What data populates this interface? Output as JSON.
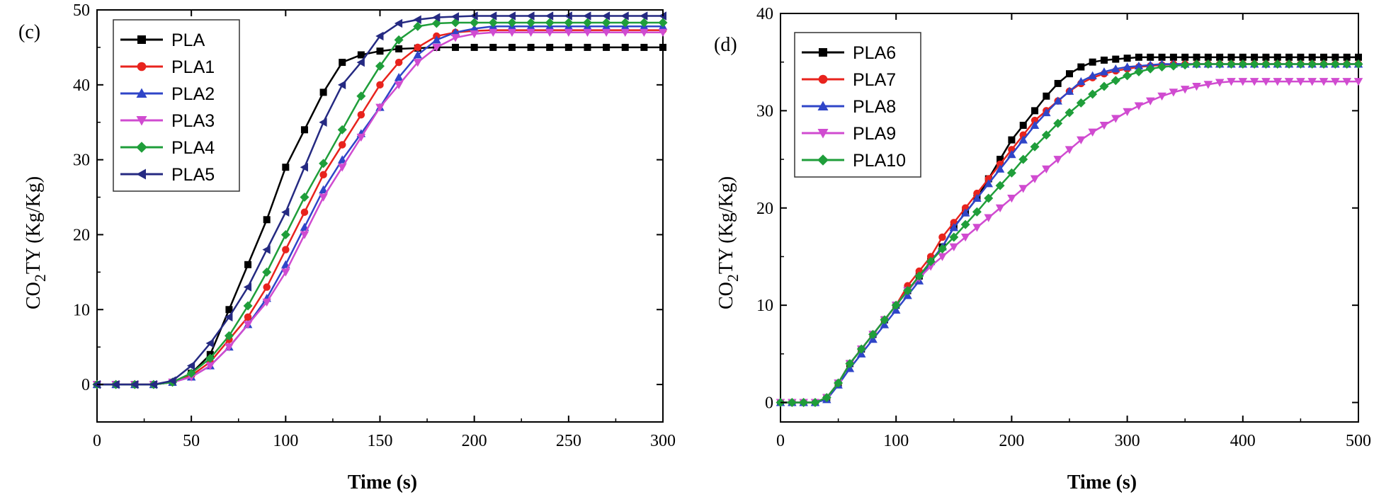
{
  "chart_data": [
    {
      "panel_label": "(c)",
      "type": "line",
      "xlabel": "Time (s)",
      "ylabel_main": "CO",
      "ylabel_sub": "2",
      "ylabel_rest": "TY (Kg/Kg)",
      "xlim": [
        0,
        300
      ],
      "ylim": [
        -5,
        50
      ],
      "xticks": [
        0,
        50,
        100,
        150,
        200,
        250,
        300
      ],
      "yticks": [
        0,
        10,
        20,
        30,
        40,
        50
      ],
      "legend_position": "top-left",
      "x_step": 10,
      "series": [
        {
          "name": "PLA",
          "color": "#000000",
          "marker": "square",
          "values": [
            0,
            0,
            0,
            0,
            0.3,
            1.5,
            4,
            10,
            16,
            22,
            29,
            34,
            39,
            43,
            44,
            44.5,
            44.8,
            44.9,
            45,
            45,
            45,
            45,
            45,
            45,
            45,
            45,
            45,
            45,
            45,
            45,
            45
          ]
        },
        {
          "name": "PLA1",
          "color": "#e8231d",
          "marker": "circle",
          "values": [
            0,
            0,
            0,
            0,
            0.3,
            1.2,
            3,
            6,
            9,
            13,
            18,
            23,
            28,
            32,
            36,
            40,
            43,
            45,
            46.5,
            47,
            47.2,
            47.3,
            47.3,
            47.3,
            47.3,
            47.3,
            47.3,
            47.3,
            47.3,
            47.3,
            47.3
          ]
        },
        {
          "name": "PLA2",
          "color": "#2f45c8",
          "marker": "triangle-up",
          "values": [
            0,
            0,
            0,
            0,
            0.3,
            1,
            2.5,
            5,
            8,
            11.5,
            16,
            21,
            26,
            30,
            33.5,
            37,
            41,
            44,
            46,
            47,
            47.5,
            47.8,
            47.8,
            47.8,
            47.8,
            47.8,
            47.8,
            47.8,
            47.8,
            47.8,
            47.8
          ]
        },
        {
          "name": "PLA3",
          "color": "#d04bd0",
          "marker": "triangle-down",
          "values": [
            0,
            0,
            0,
            0,
            0.3,
            1,
            2.5,
            5,
            8,
            11,
            15,
            20,
            25,
            29,
            33,
            37,
            40,
            43,
            45,
            46.3,
            46.8,
            47,
            47,
            47,
            47,
            47,
            47,
            47,
            47,
            47,
            47
          ]
        },
        {
          "name": "PLA4",
          "color": "#1f9e3a",
          "marker": "diamond",
          "values": [
            0,
            0,
            0,
            0,
            0.3,
            1.5,
            3.5,
            6.5,
            10.5,
            15,
            20,
            25,
            29.5,
            34,
            38.5,
            42.5,
            46,
            47.8,
            48.2,
            48.3,
            48.3,
            48.3,
            48.3,
            48.3,
            48.3,
            48.3,
            48.3,
            48.3,
            48.3,
            48.3,
            48.3
          ]
        },
        {
          "name": "PLA5",
          "color": "#252a82",
          "marker": "triangle-left",
          "values": [
            0,
            0,
            0,
            0,
            0.5,
            2.5,
            5.5,
            9,
            13,
            18,
            23,
            29,
            35,
            40,
            43,
            46.5,
            48.2,
            48.7,
            49,
            49.1,
            49.2,
            49.2,
            49.2,
            49.2,
            49.2,
            49.2,
            49.2,
            49.2,
            49.2,
            49.2,
            49.2
          ]
        }
      ]
    },
    {
      "panel_label": "(d)",
      "type": "line",
      "xlabel": "Time (s)",
      "ylabel_main": "CO",
      "ylabel_sub": "2",
      "ylabel_rest": "TY (Kg/Kg)",
      "xlim": [
        0,
        500
      ],
      "ylim": [
        -2,
        40
      ],
      "xticks": [
        0,
        100,
        200,
        300,
        400,
        500
      ],
      "yticks": [
        0,
        10,
        20,
        30,
        40
      ],
      "legend_position": "top-left",
      "x_step": 10,
      "series": [
        {
          "name": "PLA6",
          "color": "#000000",
          "marker": "square",
          "values": [
            0,
            0,
            0,
            0,
            0.5,
            2,
            4,
            5.5,
            7,
            8.5,
            10,
            11.5,
            13,
            14.5,
            16,
            18,
            19.5,
            21,
            23,
            25,
            27,
            28.5,
            30,
            31.5,
            32.8,
            33.8,
            34.5,
            35,
            35.2,
            35.3,
            35.4,
            35.5,
            35.5,
            35.5,
            35.5,
            35.5,
            35.5,
            35.5,
            35.5,
            35.5,
            35.5,
            35.5,
            35.5,
            35.5,
            35.5,
            35.5,
            35.5,
            35.5,
            35.5,
            35.5,
            35.5
          ]
        },
        {
          "name": "PLA7",
          "color": "#e8231d",
          "marker": "circle",
          "values": [
            0,
            0,
            0,
            0,
            0.5,
            2,
            4,
            5.5,
            7,
            8.5,
            10,
            12,
            13.5,
            15,
            17,
            18.5,
            20,
            21.5,
            23,
            24.5,
            26,
            27.5,
            29,
            30,
            31,
            32,
            32.8,
            33.4,
            33.8,
            34.1,
            34.3,
            34.5,
            34.6,
            34.7,
            34.8,
            34.8,
            34.8,
            34.8,
            34.8,
            34.8,
            34.8,
            34.8,
            34.8,
            34.8,
            34.8,
            34.8,
            34.8,
            34.8,
            34.8,
            34.8,
            34.8
          ]
        },
        {
          "name": "PLA8",
          "color": "#2f45c8",
          "marker": "triangle-up",
          "values": [
            0,
            0,
            0,
            0,
            0.3,
            1.8,
            3.5,
            5,
            6.5,
            8,
            9.5,
            11,
            12.5,
            14.5,
            16,
            18,
            19.5,
            21,
            22.5,
            24,
            25.5,
            27,
            28.5,
            29.8,
            31,
            32,
            33,
            33.6,
            34,
            34.3,
            34.5,
            34.6,
            34.7,
            34.8,
            34.8,
            34.8,
            34.8,
            34.8,
            34.8,
            34.8,
            34.8,
            34.8,
            34.8,
            34.8,
            34.8,
            34.8,
            34.8,
            34.8,
            34.8,
            34.8,
            34.8
          ]
        },
        {
          "name": "PLA9",
          "color": "#d04bd0",
          "marker": "triangle-down",
          "values": [
            0,
            0,
            0,
            0,
            0.5,
            2,
            4,
            5.5,
            7,
            8.5,
            10,
            11.5,
            12.8,
            14,
            15,
            16,
            17,
            18,
            19,
            20,
            21,
            22,
            23,
            24,
            25,
            26,
            27,
            27.8,
            28.5,
            29.2,
            29.9,
            30.5,
            31,
            31.5,
            31.9,
            32.2,
            32.5,
            32.7,
            32.9,
            33,
            33,
            33,
            33,
            33,
            33,
            33,
            33,
            33,
            33,
            33,
            33
          ]
        },
        {
          "name": "PLA10",
          "color": "#1f9e3a",
          "marker": "diamond",
          "values": [
            0,
            0,
            0,
            0,
            0.5,
            2,
            4,
            5.5,
            7,
            8.5,
            10,
            11.5,
            13,
            14.5,
            15.8,
            17,
            18.3,
            19.6,
            21,
            22.3,
            23.6,
            25,
            26.3,
            27.5,
            28.7,
            29.8,
            30.8,
            31.7,
            32.5,
            33.1,
            33.6,
            34,
            34.3,
            34.5,
            34.6,
            34.7,
            34.8,
            34.8,
            34.8,
            34.8,
            34.8,
            34.8,
            34.8,
            34.8,
            34.8,
            34.8,
            34.8,
            34.8,
            34.8,
            34.8,
            34.8
          ]
        }
      ]
    }
  ]
}
